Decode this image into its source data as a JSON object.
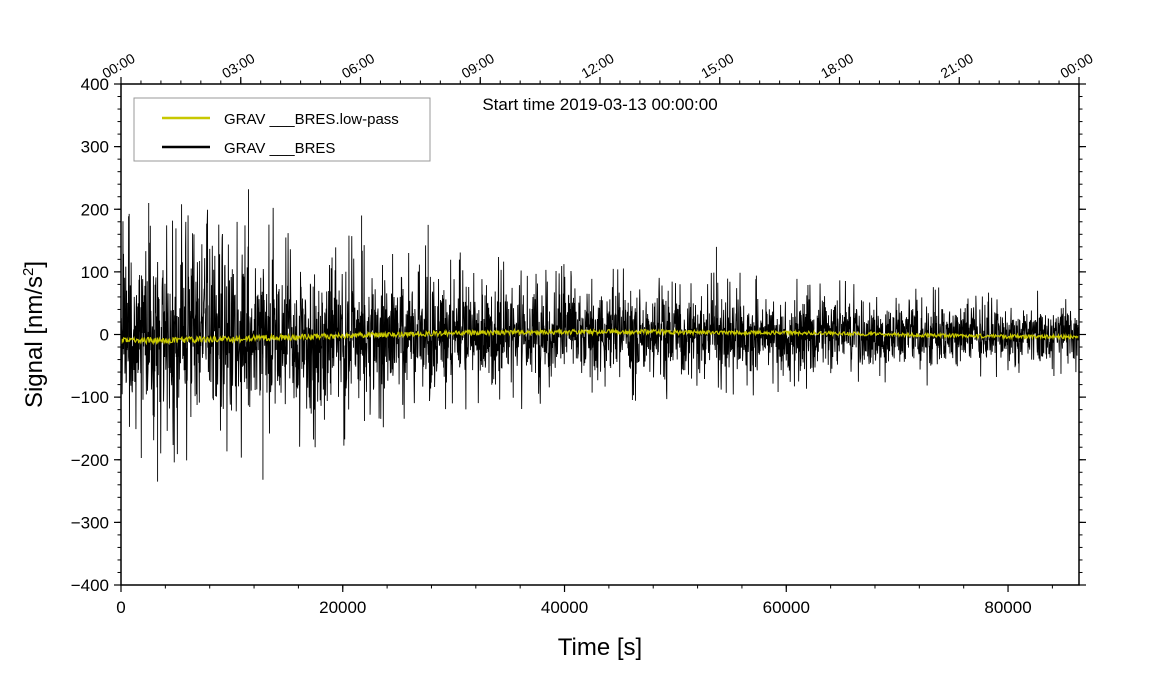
{
  "chart_data": {
    "type": "line",
    "xlabel": "Time [s]",
    "ylabel": "Signal [nm/s²]",
    "ylabel_base": "Signal [nm/s",
    "ylabel_sup": "2",
    "ylabel_close": "]",
    "xlim": [
      0,
      86400
    ],
    "ylim": [
      -400,
      400
    ],
    "x_ticks": [
      0,
      20000,
      40000,
      60000,
      80000
    ],
    "x_tick_labels": [
      "0",
      "20000",
      "40000",
      "60000",
      "80000"
    ],
    "y_ticks": [
      -400,
      -300,
      -200,
      -100,
      0,
      100,
      200,
      300,
      400
    ],
    "y_tick_labels": [
      "−400",
      "−300",
      "−200",
      "−100",
      "0",
      "100",
      "200",
      "300",
      "400"
    ],
    "top_axis_ticks": [
      0,
      10800,
      21600,
      32400,
      43200,
      54000,
      64800,
      75600,
      86400
    ],
    "top_axis_labels": [
      "00:00",
      "03:00",
      "06:00",
      "09:00",
      "12:00",
      "15:00",
      "18:00",
      "21:00",
      "00:00"
    ],
    "annotation": "Start time 2019-03-13 00:00:00",
    "grid": false,
    "legend_position": "top-left",
    "series": [
      {
        "name": "GRAV ___BRES.low-pass",
        "color": "#c8c800",
        "style": "narrow-band",
        "trend_x": [
          0,
          8000,
          16000,
          24000,
          32000,
          40000,
          48000,
          56000,
          64000,
          72000,
          80000,
          86400
        ],
        "trend_y": [
          -10,
          -8,
          -4,
          0,
          3,
          4,
          4,
          3,
          2,
          -1,
          -3,
          -4
        ],
        "half_width_y": [
          5,
          5,
          5,
          4,
          4,
          4,
          4,
          3,
          3,
          3,
          3,
          3
        ]
      },
      {
        "name": "GRAV ___BRES",
        "color": "#000000",
        "style": "noise-envelope",
        "envelope_x": [
          0,
          4000,
          8000,
          12000,
          16000,
          20000,
          24000,
          28000,
          32000,
          36000,
          40000,
          48000,
          56000,
          64000,
          72000,
          80000,
          86400
        ],
        "envelope_y": [
          180,
          200,
          195,
          210,
          180,
          170,
          140,
          135,
          120,
          120,
          110,
          100,
          95,
          90,
          80,
          70,
          65
        ],
        "peaks_x": [
          2500,
          3300,
          11500,
          12800,
          21700,
          27700,
          53700
        ],
        "peaks_y": [
          210,
          -235,
          232,
          -232,
          190,
          175,
          140
        ]
      }
    ]
  }
}
